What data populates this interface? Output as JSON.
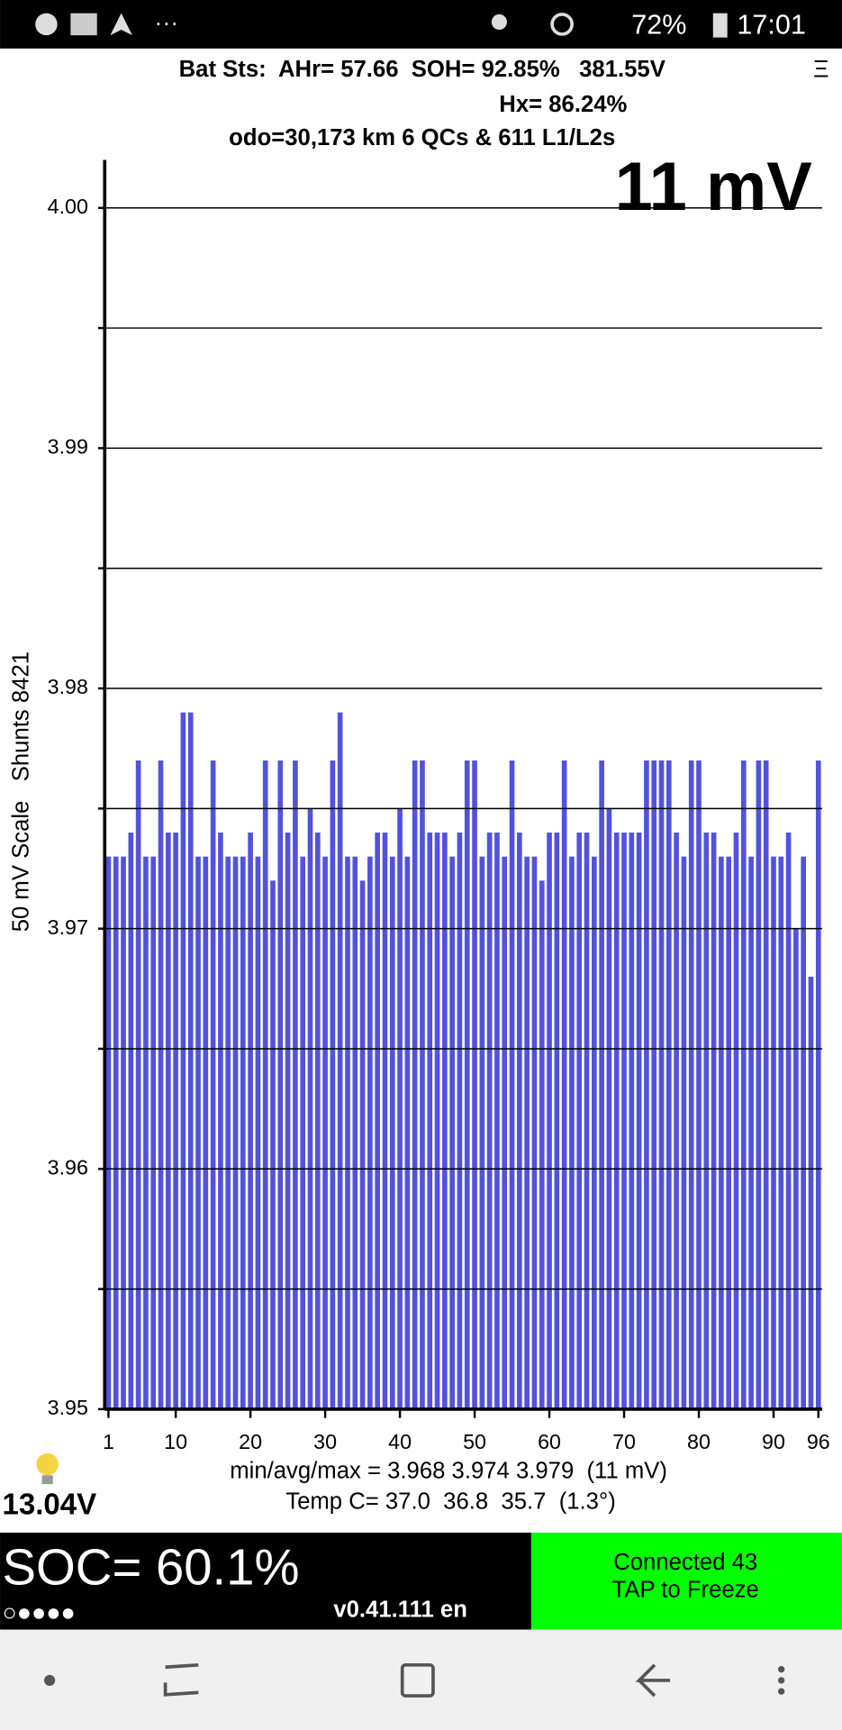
{
  "status_bar": {
    "battery": "72%",
    "time": "17:01"
  },
  "header": {
    "line1": "Bat Sts:  AHr= 57.66  SOH= 92.85%   381.55V",
    "line2": "Hx= 86.24%",
    "line3": "odo=30,173 km 6 QCs & 611 L1/L2s",
    "menu": "Ξ"
  },
  "chart_data": {
    "type": "bar",
    "y_label": "50 mV Scale   Shunts 8421",
    "annotation": "11 mV",
    "x": [
      1,
      2,
      3,
      4,
      5,
      6,
      7,
      8,
      9,
      10,
      11,
      12,
      13,
      14,
      15,
      16,
      17,
      18,
      19,
      20,
      21,
      22,
      23,
      24,
      25,
      26,
      27,
      28,
      29,
      30,
      31,
      32,
      33,
      34,
      35,
      36,
      37,
      38,
      39,
      40,
      41,
      42,
      43,
      44,
      45,
      46,
      47,
      48,
      49,
      50,
      51,
      52,
      53,
      54,
      55,
      56,
      57,
      58,
      59,
      60,
      61,
      62,
      63,
      64,
      65,
      66,
      67,
      68,
      69,
      70,
      71,
      72,
      73,
      74,
      75,
      76,
      77,
      78,
      79,
      80,
      81,
      82,
      83,
      84,
      85,
      86,
      87,
      88,
      89,
      90,
      91,
      92,
      93,
      94,
      95,
      96
    ],
    "values": [
      3.973,
      3.973,
      3.973,
      3.974,
      3.977,
      3.973,
      3.973,
      3.977,
      3.974,
      3.974,
      3.979,
      3.979,
      3.973,
      3.973,
      3.977,
      3.974,
      3.973,
      3.973,
      3.973,
      3.974,
      3.973,
      3.977,
      3.972,
      3.977,
      3.974,
      3.977,
      3.973,
      3.975,
      3.974,
      3.973,
      3.977,
      3.979,
      3.973,
      3.973,
      3.972,
      3.973,
      3.974,
      3.974,
      3.973,
      3.975,
      3.973,
      3.977,
      3.977,
      3.974,
      3.974,
      3.974,
      3.973,
      3.974,
      3.977,
      3.977,
      3.973,
      3.974,
      3.974,
      3.973,
      3.977,
      3.974,
      3.973,
      3.973,
      3.972,
      3.974,
      3.974,
      3.977,
      3.973,
      3.974,
      3.974,
      3.973,
      3.977,
      3.975,
      3.974,
      3.974,
      3.974,
      3.974,
      3.977,
      3.977,
      3.977,
      3.977,
      3.974,
      3.973,
      3.977,
      3.977,
      3.974,
      3.974,
      3.973,
      3.973,
      3.974,
      3.977,
      3.973,
      3.977,
      3.977,
      3.973,
      3.973,
      3.974,
      3.97,
      3.973,
      3.968,
      3.977
    ],
    "color": "#5252dc",
    "xlim": [
      0.5,
      96.5
    ],
    "xticks": [
      1,
      10,
      20,
      30,
      40,
      50,
      60,
      70,
      80,
      90,
      96
    ],
    "ylim": [
      3.95,
      4.002
    ],
    "yticks": [
      3.95,
      3.96,
      3.97,
      3.98,
      3.99,
      {
        "value": 4,
        "label": "4.00"
      }
    ],
    "yminor": [
      3.955,
      3.965,
      3.975,
      3.985,
      3.995
    ],
    "grid": true
  },
  "footer": {
    "pack_voltage": "13.04V",
    "stats": "min/avg/max = 3.968 3.974 3.979  (11 mV)",
    "temp": "Temp C= 37.0  36.8  35.7  (1.3°)",
    "soc": "SOC= 60.1%",
    "dots": "○●●●●",
    "version": "v0.41.111 en",
    "connected": "Connected 43",
    "tap": "TAP to Freeze"
  }
}
